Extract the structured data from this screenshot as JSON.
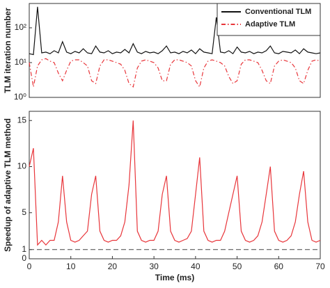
{
  "chart_data": [
    {
      "type": "line",
      "ylabel": "TLM iteration number",
      "log_y": true,
      "xlim": [
        0,
        70
      ],
      "ylim": [
        1,
        500
      ],
      "yticks": [
        {
          "value": 1,
          "label": "10⁰"
        },
        {
          "value": 10,
          "label": "10¹"
        },
        {
          "value": 100,
          "label": "10²"
        }
      ],
      "legend": "top-right",
      "x": [
        0,
        1,
        2,
        3,
        4,
        5,
        6,
        7,
        8,
        9,
        10,
        11,
        12,
        13,
        14,
        15,
        16,
        17,
        18,
        19,
        20,
        21,
        22,
        23,
        24,
        25,
        26,
        27,
        28,
        29,
        30,
        31,
        32,
        33,
        34,
        35,
        36,
        37,
        38,
        39,
        40,
        41,
        42,
        43,
        44,
        45,
        46,
        47,
        48,
        49,
        50,
        51,
        52,
        53,
        54,
        55,
        56,
        57,
        58,
        59,
        60,
        61,
        62,
        63,
        64,
        65,
        66,
        67,
        68,
        69,
        70
      ],
      "series": [
        {
          "name": "Conventional TLM",
          "color": "#111111",
          "dash": "solid",
          "values": [
            18,
            17,
            400,
            19,
            20,
            18,
            22,
            19,
            40,
            20,
            18,
            21,
            19,
            25,
            19,
            18,
            30,
            20,
            19,
            22,
            18,
            20,
            19,
            24,
            19,
            35,
            20,
            18,
            21,
            19,
            20,
            18,
            22,
            30,
            19,
            20,
            18,
            21,
            19,
            23,
            18,
            25,
            20,
            19,
            18,
            200,
            20,
            19,
            22,
            18,
            28,
            20,
            19,
            21,
            18,
            20,
            19,
            22,
            30,
            19,
            18,
            21,
            20,
            19,
            23,
            18,
            25,
            20,
            19,
            18,
            19
          ]
        },
        {
          "name": "Adaptive TLM",
          "color": "#e8353a",
          "dash": "dashdot",
          "values": [
            10,
            2,
            8,
            12,
            13,
            11,
            10,
            5,
            3,
            6,
            11,
            12,
            12,
            10,
            8,
            3,
            2.5,
            8,
            12,
            12,
            11,
            10,
            9,
            6,
            2.5,
            2,
            7,
            11,
            12,
            11,
            10,
            7,
            3,
            3,
            9,
            12,
            12,
            11,
            10,
            8,
            3,
            2,
            7,
            11,
            12,
            11,
            10,
            8,
            4,
            2.5,
            3,
            9,
            12,
            12,
            11,
            10,
            6,
            3,
            2.5,
            8,
            11,
            12,
            11,
            10,
            7,
            3,
            2.5,
            6,
            11,
            12,
            11
          ]
        }
      ]
    },
    {
      "type": "line",
      "ylabel": "Speedup of adaptive TLM method",
      "xlabel": "Time (ms)",
      "xlim": [
        0,
        70
      ],
      "ylim": [
        0,
        16
      ],
      "xticks": [
        0,
        10,
        20,
        30,
        40,
        50,
        60,
        70
      ],
      "yticks": [
        0,
        1,
        5,
        10,
        15
      ],
      "hline": 1,
      "x": [
        0,
        1,
        2,
        3,
        4,
        5,
        6,
        7,
        8,
        9,
        10,
        11,
        12,
        13,
        14,
        15,
        16,
        17,
        18,
        19,
        20,
        21,
        22,
        23,
        24,
        25,
        26,
        27,
        28,
        29,
        30,
        31,
        32,
        33,
        34,
        35,
        36,
        37,
        38,
        39,
        40,
        41,
        42,
        43,
        44,
        45,
        46,
        47,
        48,
        49,
        50,
        51,
        52,
        53,
        54,
        55,
        56,
        57,
        58,
        59,
        60,
        61,
        62,
        63,
        64,
        65,
        66,
        67,
        68,
        69,
        70
      ],
      "series": [
        {
          "color": "#e8353a",
          "dash": "solid",
          "values": [
            10,
            12,
            1.5,
            2,
            1.5,
            2,
            2,
            4,
            9,
            4,
            2,
            1.8,
            2,
            2.5,
            3,
            7,
            9,
            3,
            2,
            1.8,
            2,
            2,
            2.5,
            4,
            8,
            15,
            3,
            2,
            1.8,
            2,
            2,
            3,
            7,
            9,
            3,
            2,
            1.8,
            2,
            2.2,
            3,
            7,
            11,
            3,
            2,
            1.8,
            2,
            2,
            3,
            5,
            7,
            9,
            3,
            2,
            1.8,
            2,
            2.5,
            4,
            7,
            10,
            3,
            2,
            1.8,
            2,
            2.5,
            4,
            7,
            9.5,
            4,
            2,
            1.8,
            2
          ]
        }
      ]
    }
  ]
}
